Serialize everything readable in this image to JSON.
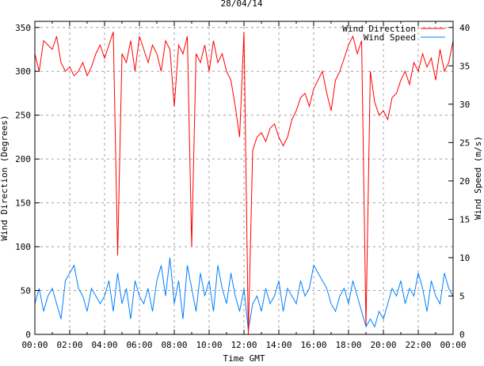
{
  "chart_data": {
    "type": "line",
    "title": "28/04/14",
    "xlabel": "Time GMT",
    "ylabel": "Wind Direction (Degrees)",
    "y2label": "Wind Speed (m/s)",
    "xlim": [
      0,
      24
    ],
    "ylim": [
      0,
      357
    ],
    "y2lim": [
      0,
      40.8
    ],
    "grid": true,
    "legend_position": "top-right",
    "x_ticks": [
      0,
      2,
      4,
      6,
      8,
      10,
      12,
      14,
      16,
      18,
      20,
      22,
      24
    ],
    "x_tick_labels": [
      "00:00",
      "02:00",
      "04:00",
      "06:00",
      "08:00",
      "10:00",
      "12:00",
      "14:00",
      "16:00",
      "18:00",
      "20:00",
      "22:00",
      "00:00"
    ],
    "y_ticks": [
      0,
      50,
      100,
      150,
      200,
      250,
      300,
      350
    ],
    "y_tick_labels": [
      "0",
      "50",
      "100",
      "150",
      "200",
      "250",
      "300",
      "350"
    ],
    "y2_ticks": [
      0,
      5,
      10,
      15,
      20,
      25,
      30,
      35,
      40
    ],
    "y2_tick_labels": [
      "0",
      "5",
      "10",
      "15",
      "20",
      "25",
      "30",
      "35",
      "40"
    ],
    "x_step_hours": 0.25,
    "series": [
      {
        "name": "Wind Direction",
        "axis": "left",
        "color": "#ff0000",
        "values": [
          320,
          300,
          335,
          330,
          325,
          340,
          310,
          300,
          305,
          295,
          300,
          310,
          295,
          305,
          320,
          330,
          315,
          330,
          345,
          90,
          320,
          310,
          335,
          300,
          340,
          325,
          310,
          330,
          320,
          300,
          335,
          325,
          260,
          330,
          320,
          340,
          100,
          320,
          310,
          330,
          300,
          335,
          310,
          320,
          300,
          290,
          260,
          225,
          345,
          0,
          210,
          225,
          230,
          220,
          235,
          240,
          225,
          215,
          225,
          245,
          255,
          270,
          275,
          260,
          280,
          290,
          300,
          275,
          255,
          290,
          300,
          315,
          330,
          340,
          320,
          335,
          10,
          300,
          265,
          250,
          255,
          245,
          270,
          275,
          290,
          300,
          285,
          310,
          300,
          320,
          305,
          315,
          290,
          325,
          300,
          310,
          335
        ]
      },
      {
        "name": "Wind Speed",
        "axis": "right",
        "color": "#0080ff",
        "values": [
          4,
          6,
          3,
          5,
          6,
          4,
          2,
          7,
          8,
          9,
          6,
          5,
          3,
          6,
          5,
          4,
          5,
          7,
          3,
          8,
          4,
          6,
          2,
          7,
          5,
          4,
          6,
          3,
          7,
          9,
          5,
          10,
          4,
          7,
          2,
          9,
          6,
          3,
          8,
          5,
          7,
          3,
          9,
          6,
          4,
          8,
          5,
          3,
          6,
          0.5,
          4,
          5,
          3,
          6,
          4,
          5,
          7,
          3,
          6,
          5,
          4,
          7,
          5,
          6,
          9,
          8,
          7,
          6,
          4,
          3,
          5,
          6,
          4,
          7,
          5,
          3,
          1,
          2,
          1,
          3,
          2,
          4,
          6,
          5,
          7,
          4,
          6,
          5,
          8,
          6,
          3,
          7,
          5,
          4,
          8,
          6,
          5
        ]
      }
    ]
  }
}
